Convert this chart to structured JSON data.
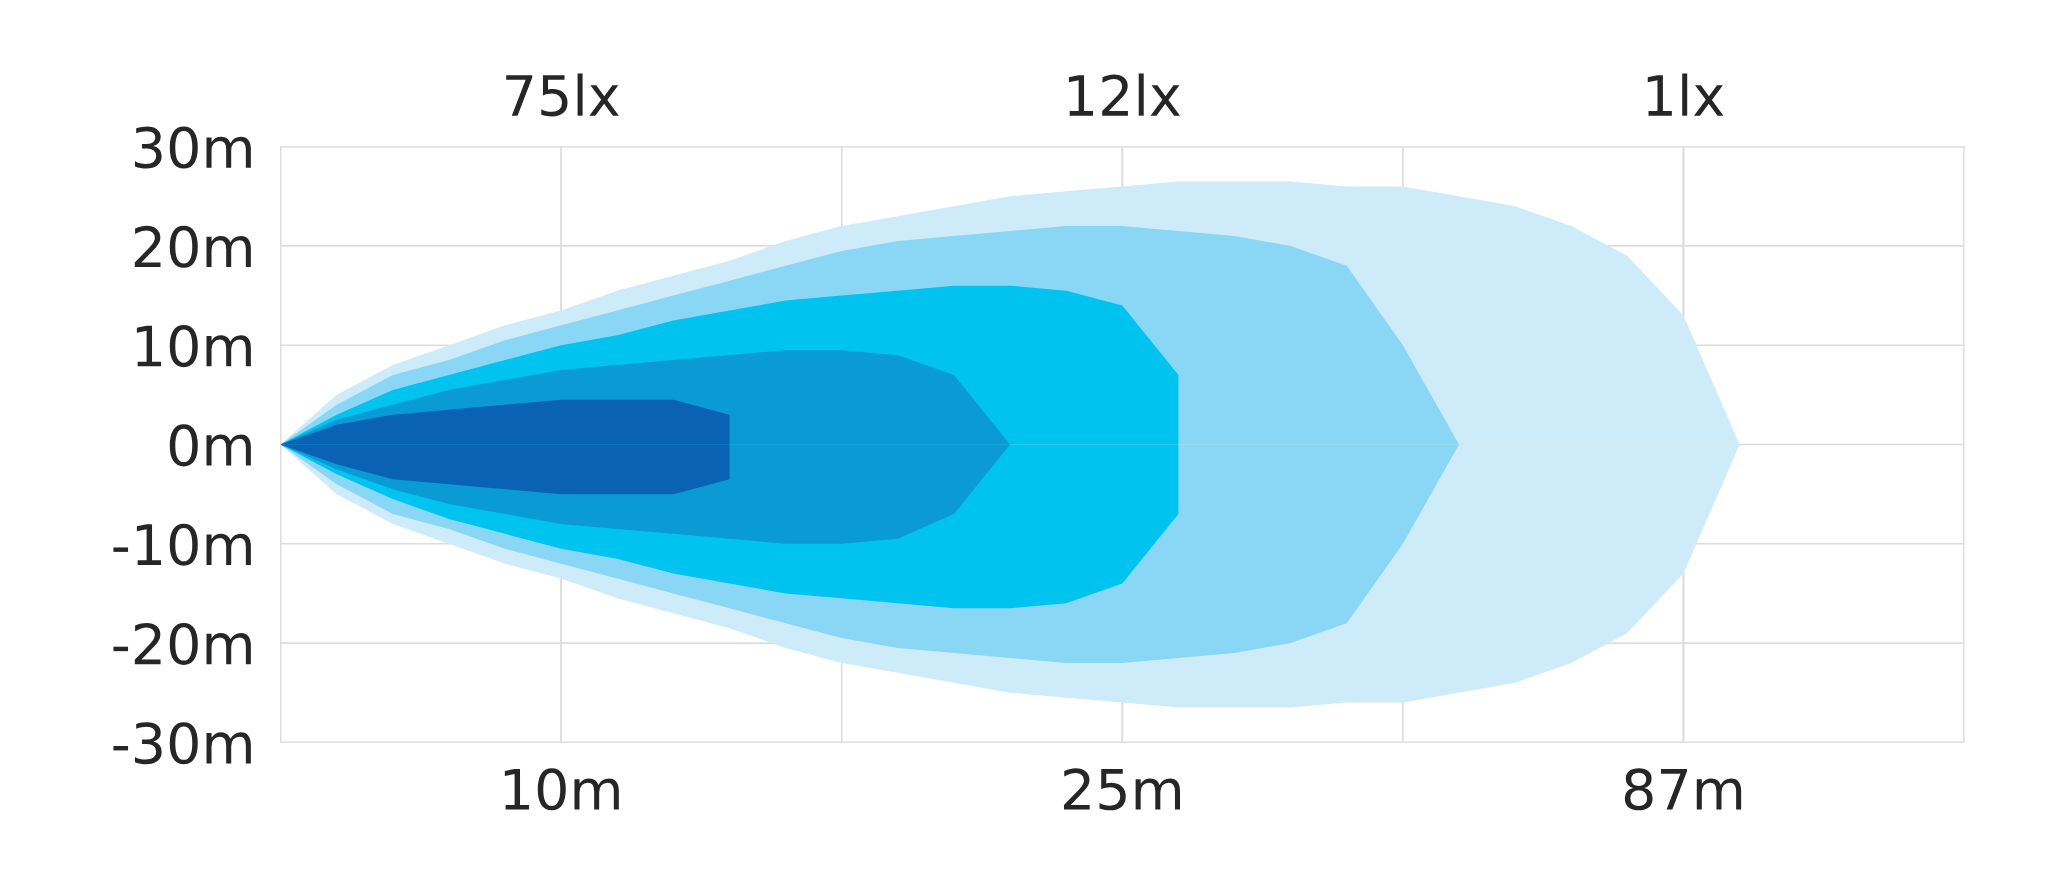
{
  "chart_data": {
    "type": "area",
    "categories": [
      null,
      null,
      null,
      null,
      null,
      "10m",
      null,
      null,
      null,
      null,
      null,
      null,
      null,
      null,
      null,
      "25m",
      null,
      null,
      null,
      null,
      null,
      null,
      null,
      null,
      null,
      "87m",
      null,
      null,
      null,
      null,
      null
    ],
    "series": [
      {
        "color": "#cdebf9",
        "values": [
          0,
          5,
          8,
          10,
          12,
          13.5,
          15.5,
          17,
          18.5,
          20.5,
          22,
          23,
          24,
          25,
          25.5,
          26,
          26.5,
          26.5,
          26.5,
          26,
          26,
          25,
          24,
          22,
          19,
          13,
          0,
          null,
          null,
          null,
          null
        ]
      },
      {
        "color": "#cdebf9",
        "values": [
          0,
          -5,
          -8,
          -10,
          -12,
          -13.5,
          -15.5,
          -17,
          -18.5,
          -20.5,
          -22,
          -23,
          -24,
          -25,
          -25.5,
          -26,
          -26.5,
          -26.5,
          -26.5,
          -26,
          -26,
          -25,
          -24,
          -22,
          -19,
          -13,
          0,
          null,
          null,
          null,
          null
        ]
      },
      {
        "color": "#8ad7f5",
        "values": [
          0,
          4,
          7,
          8.5,
          10.5,
          12,
          13.5,
          15,
          16.5,
          18,
          19.5,
          20.5,
          21,
          21.5,
          22,
          22,
          21.5,
          21,
          20,
          18,
          10,
          0,
          null,
          null,
          null,
          null,
          null,
          null,
          null,
          null,
          null
        ]
      },
      {
        "color": "#8ad7f5",
        "values": [
          0,
          -4,
          -7,
          -8.5,
          -10.5,
          -12,
          -13.5,
          -15,
          -16.5,
          -18,
          -19.5,
          -20.5,
          -21,
          -21.5,
          -22,
          -22,
          -21.5,
          -21,
          -20,
          -18,
          -10,
          0,
          null,
          null,
          null,
          null,
          null,
          null,
          null,
          null,
          null
        ]
      },
      {
        "color": "#00c3ef",
        "values": [
          0,
          3,
          5.5,
          7,
          8.5,
          10,
          11,
          12.5,
          13.5,
          14.5,
          15,
          15.5,
          16,
          16,
          15.5,
          14,
          7,
          null,
          null,
          null,
          null,
          null,
          null,
          null,
          null,
          null,
          null,
          null,
          null,
          null,
          null
        ]
      },
      {
        "color": "#00c3ef",
        "values": [
          0,
          -3,
          -5.5,
          -7.5,
          -9,
          -10.5,
          -11.5,
          -13,
          -14,
          -15,
          -15.5,
          -16,
          -16.5,
          -16.5,
          -16,
          -14,
          -7,
          null,
          null,
          null,
          null,
          null,
          null,
          null,
          null,
          null,
          null,
          null,
          null,
          null,
          null
        ]
      },
      {
        "color": "#0a9ad6",
        "values": [
          0,
          2.5,
          4,
          5.5,
          6.5,
          7.5,
          8,
          8.5,
          9,
          9.5,
          9.5,
          9,
          7,
          0,
          null,
          null,
          null,
          null,
          null,
          null,
          null,
          null,
          null,
          null,
          null,
          null,
          null,
          null,
          null,
          null,
          null
        ]
      },
      {
        "color": "#0a9ad6",
        "values": [
          0,
          -2.5,
          -4.5,
          -6,
          -7,
          -8,
          -8.5,
          -9,
          -9.5,
          -10,
          -10,
          -9.5,
          -7,
          0,
          null,
          null,
          null,
          null,
          null,
          null,
          null,
          null,
          null,
          null,
          null,
          null,
          null,
          null,
          null,
          null,
          null
        ]
      },
      {
        "color": "#0a62b4",
        "values": [
          0,
          2,
          3,
          3.5,
          4,
          4.5,
          4.5,
          4.5,
          3,
          null,
          null,
          null,
          null,
          null,
          null,
          null,
          null,
          null,
          null,
          null,
          null,
          null,
          null,
          null,
          null,
          null,
          null,
          null,
          null,
          null,
          null
        ]
      },
      {
        "color": "#0a62b4",
        "values": [
          0,
          -2,
          -3.5,
          -4,
          -4.5,
          -5,
          -5,
          -5,
          -3.5,
          null,
          null,
          null,
          null,
          null,
          null,
          null,
          null,
          null,
          null,
          null,
          null,
          null,
          null,
          null,
          null,
          null,
          null,
          null,
          null,
          null,
          null
        ]
      }
    ],
    "annotations": [
      "75lx",
      "12lx",
      "1lx"
    ],
    "ylim": [
      -30,
      30
    ],
    "yticks": [
      {
        "value": 30,
        "label": "30m"
      },
      {
        "value": 20,
        "label": "20m"
      },
      {
        "value": 10,
        "label": "10m"
      },
      {
        "value": 0,
        "label": "0m"
      },
      {
        "value": -10,
        "label": "-10m"
      },
      {
        "value": -20,
        "label": "-20m"
      },
      {
        "value": -30,
        "label": "-30m"
      }
    ],
    "grid": true
  }
}
